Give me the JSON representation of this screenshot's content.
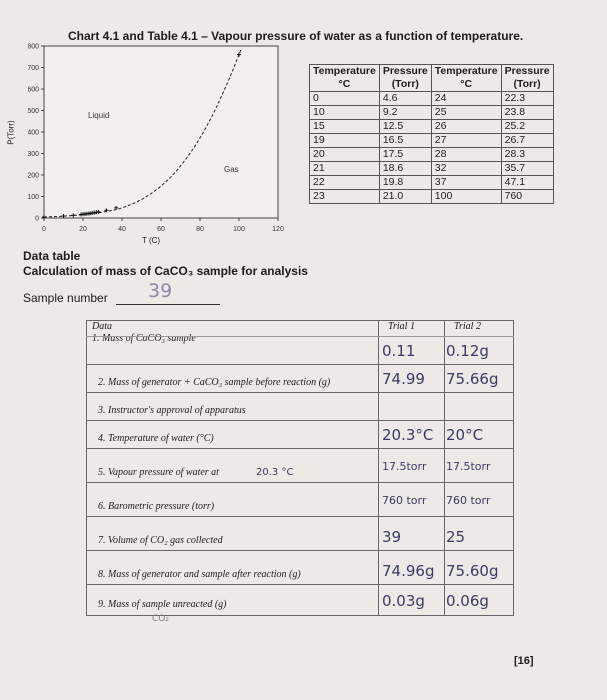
{
  "chart": {
    "title": "Chart 4.1 and Table 4.1 – Vapour pressure of water as a function of temperature.",
    "x_label": "T (C)",
    "y_label": "P(Torr)",
    "region_liquid": "Liquid",
    "region_gas": "Gas",
    "x_ticks": [
      "0",
      "20",
      "40",
      "60",
      "80",
      "100",
      "120"
    ],
    "y_ticks": [
      "0",
      "100",
      "200",
      "300",
      "400",
      "500",
      "600",
      "700",
      "800"
    ]
  },
  "chart_data": {
    "type": "scatter",
    "title": "Chart 4.1 and Table 4.1 – Vapour pressure of water as a function of temperature.",
    "xlabel": "T (C)",
    "ylabel": "P(Torr)",
    "xlim": [
      0,
      120
    ],
    "ylim": [
      0,
      800
    ],
    "series": [
      {
        "x": [
          0,
          10,
          15,
          19,
          20,
          21,
          22,
          23,
          24,
          25,
          26,
          27,
          28,
          32,
          37,
          100
        ],
        "y": [
          4.6,
          9.2,
          12.5,
          16.5,
          17.5,
          18.6,
          19.8,
          21.0,
          22.3,
          23.8,
          25.2,
          26.7,
          28.3,
          35.7,
          47.1,
          760
        ]
      }
    ]
  },
  "vp_table": {
    "headers": [
      [
        "Temperature",
        "°C"
      ],
      [
        "Pressure",
        "(Torr)"
      ],
      [
        "Temperature",
        "°C"
      ],
      [
        "Pressure",
        "(Torr)"
      ]
    ],
    "rows": [
      [
        "0",
        "4.6",
        "24",
        "22.3"
      ],
      [
        "10",
        "9.2",
        "25",
        "23.8"
      ],
      [
        "15",
        "12.5",
        "26",
        "25.2"
      ],
      [
        "19",
        "16.5",
        "27",
        "26.7"
      ],
      [
        "20",
        "17.5",
        "28",
        "28.3"
      ],
      [
        "21",
        "18.6",
        "32",
        "35.7"
      ],
      [
        "22",
        "19.8",
        "37",
        "47.1"
      ],
      [
        "23",
        "21.0",
        "100",
        "760"
      ]
    ]
  },
  "data_table": {
    "title": "Data table",
    "subtitle": "Calculation of mass of CaCO₃ sample for analysis",
    "sample_label": "Sample number",
    "sample_value": "39",
    "headers": {
      "data": "Data",
      "trial1": "Trial 1",
      "trial2": "Trial 2"
    },
    "rows": [
      {
        "label": "1. Mass of CaCO₃ sample",
        "t1": "0.11",
        "t2": "0.12g"
      },
      {
        "label": "2. Mass of generator + CaCO₃ sample before reaction (g)",
        "t1": "74.99",
        "t2": "75.66g"
      },
      {
        "label": "3. Instructor's approval of apparatus",
        "t1": "",
        "t2": ""
      },
      {
        "label": "4. Temperature of water (°C)",
        "t1": "20.3°C",
        "t2": "20°C"
      },
      {
        "label": "5. Vapour pressure of water at",
        "extra": "20.3 °C",
        "t1": "17.5torr",
        "t2": "17.5torr"
      },
      {
        "label": "6. Barometric pressure (torr)",
        "t1": "760 torr",
        "t2": "760 torr"
      },
      {
        "label": "7. Volume of CO₂ gas collected",
        "t1": "39",
        "t2": "25"
      },
      {
        "label": "8. Mass of generator and sample after reaction (g)",
        "t1": "74.96g",
        "t2": "75.60g"
      },
      {
        "label": "9. Mass of sample unreacted (g)",
        "sub": "CO₂",
        "t1": "0.03g",
        "t2": "0.06g"
      }
    ]
  },
  "page_number": "[16]"
}
